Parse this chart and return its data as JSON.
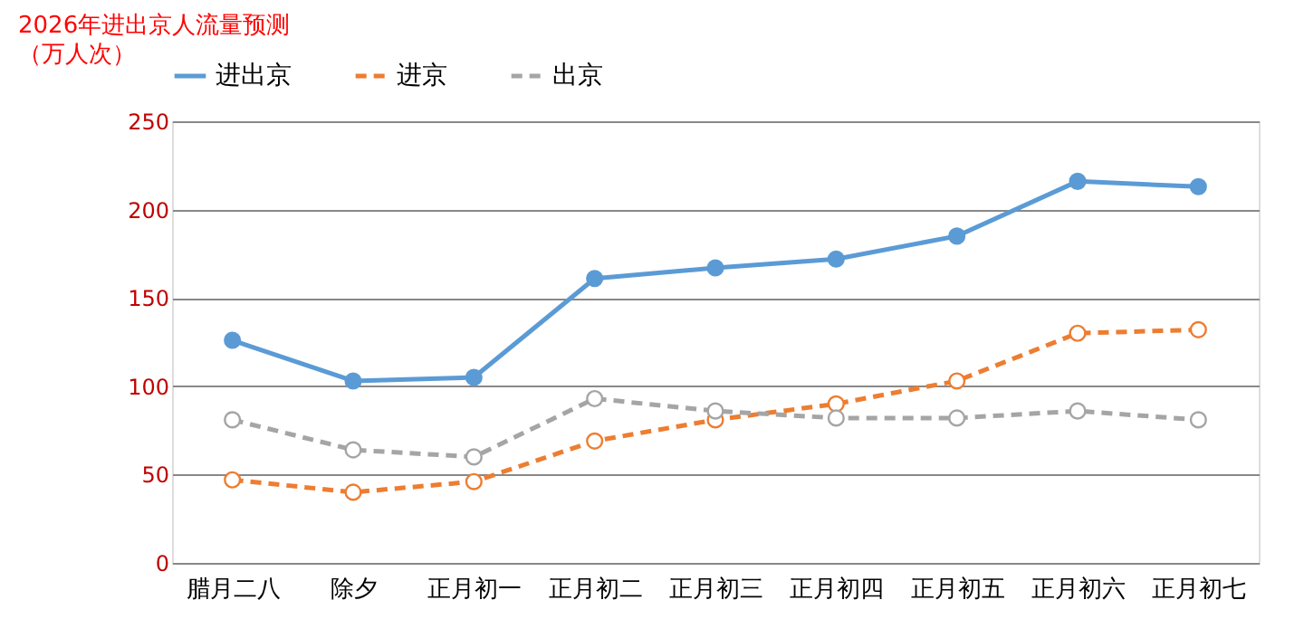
{
  "chart_data": {
    "type": "line",
    "title": "2026年进出京人流量预测",
    "subtitle": "（万人次）",
    "categories": [
      "腊月二八",
      "除夕",
      "正月初一",
      "正月初二",
      "正月初三",
      "正月初四",
      "正月初五",
      "正月初六",
      "正月初七"
    ],
    "series": [
      {
        "name": "进出京",
        "color": "#5b9bd5",
        "line_style": "solid",
        "marker": "circle",
        "values": [
          126,
          103,
          105,
          161,
          167,
          172,
          185,
          216,
          213
        ]
      },
      {
        "name": "进京",
        "color": "#ed7d31",
        "line_style": "dashed",
        "marker": "circle",
        "values": [
          47,
          40,
          46,
          69,
          81,
          90,
          103,
          130,
          132
        ]
      },
      {
        "name": "出京",
        "color": "#a5a5a5",
        "line_style": "dashed",
        "marker": "circle",
        "values": [
          81,
          64,
          60,
          93,
          86,
          82,
          82,
          86,
          81
        ]
      }
    ],
    "ylim": [
      0,
      250
    ],
    "yticks": [
      0,
      50,
      100,
      150,
      200,
      250
    ],
    "grid": "y",
    "legend": "top"
  }
}
